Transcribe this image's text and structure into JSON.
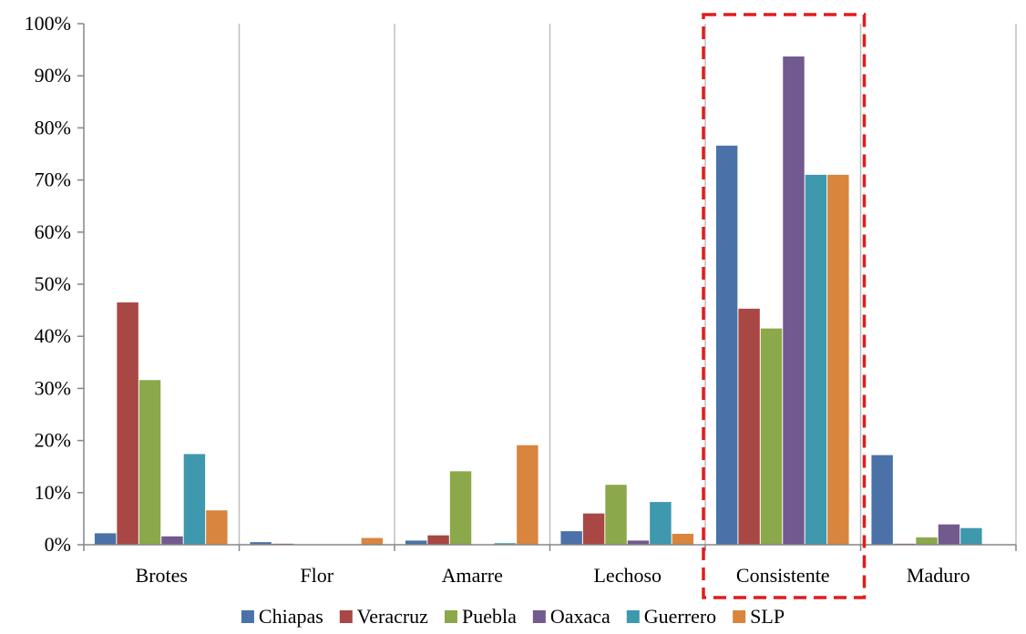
{
  "chart_data": {
    "type": "bar",
    "categories": [
      "Brotes",
      "Flor",
      "Amarre",
      "Lechoso",
      "Consistente",
      "Maduro"
    ],
    "series": [
      {
        "name": "Chiapas",
        "color": "#4A72A8",
        "values": [
          2.2,
          0.5,
          0.8,
          2.6,
          76.6,
          17.2
        ]
      },
      {
        "name": "Veracruz",
        "color": "#A94744",
        "values": [
          46.5,
          0.2,
          1.8,
          6.0,
          45.3,
          0.2
        ]
      },
      {
        "name": "Puebla",
        "color": "#8BA84A",
        "values": [
          31.6,
          0.0,
          14.1,
          11.5,
          41.5,
          1.4
        ]
      },
      {
        "name": "Oaxaca",
        "color": "#72598E",
        "values": [
          1.6,
          0.0,
          0.0,
          0.8,
          93.7,
          3.9
        ]
      },
      {
        "name": "Guerrero",
        "color": "#3E98AE",
        "values": [
          17.4,
          0.0,
          0.3,
          8.2,
          71.0,
          3.2
        ]
      },
      {
        "name": "SLP",
        "color": "#D9853E",
        "values": [
          6.6,
          1.3,
          19.1,
          2.1,
          71.0,
          0.0
        ]
      }
    ],
    "ylim": [
      0,
      100
    ],
    "yticks": [
      "0%",
      "10%",
      "20%",
      "30%",
      "40%",
      "50%",
      "60%",
      "70%",
      "80%",
      "90%",
      "100%"
    ],
    "grid": "vertical",
    "legend_position": "bottom",
    "highlight": {
      "category": "Consistente",
      "style": "red-dashed-box",
      "color": "#E31B1B"
    },
    "title": "",
    "xlabel": "",
    "ylabel": ""
  }
}
